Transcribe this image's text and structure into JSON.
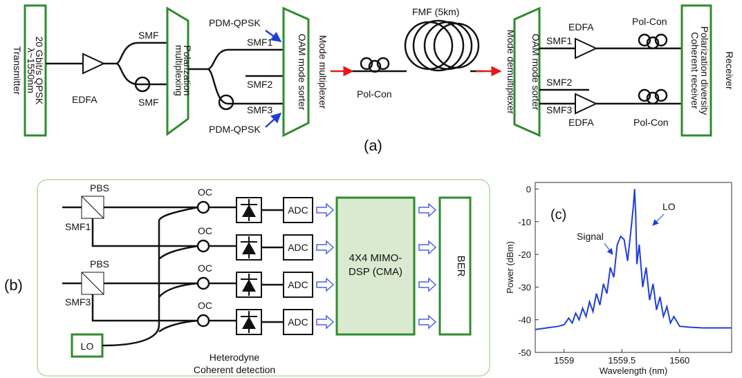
{
  "panel_a": {
    "caption": "(a)",
    "transmitter": {
      "side_label": "Transmitter",
      "line1": "20 Gbit/s QPSK",
      "line2": "λ~1550nm"
    },
    "edfa_tx": "EDFA",
    "smf_top": "SMF",
    "smf_bottom": "SMF",
    "pol_mux": {
      "line1": "Polarization",
      "line2": "multiplexing"
    },
    "pdm_qpsk_top": "PDM-QPSK",
    "pdm_qpsk_bottom": "PDM-QPSK",
    "smf1_tx": "SMF1",
    "smf2_tx": "SMF2",
    "smf3_tx": "SMF3",
    "oam_sorter_tx": "OAM mode sorter",
    "mode_multiplexer": "Mode multiplexer",
    "fmf": "FMF (5km)",
    "pol_con_mid": "Pol-Con",
    "mode_demultiplexer": "Mode demultiplexer",
    "oam_sorter_rx": "OAM mode sorter",
    "smf1_rx": "SMF1",
    "smf2_rx": "SMF2",
    "smf3_rx": "SMF3",
    "edfa_rx_top": "EDFA",
    "edfa_rx_bottom": "EDFA",
    "pol_con_rx_top": "Pol-Con",
    "pol_con_rx_bottom": "Pol-Con",
    "receiver": {
      "side_label": "Receiver",
      "line1": "Polarization diversity",
      "line2": "Coherent receiver"
    }
  },
  "panel_b": {
    "caption": "(b)",
    "pbs_top": "PBS",
    "pbs_bottom": "PBS",
    "smf1": "SMF1",
    "smf3": "SMF3",
    "oc_labels": [
      "OC",
      "OC",
      "OC",
      "OC"
    ],
    "adc_labels": [
      "ADC",
      "ADC",
      "ADC",
      "ADC"
    ],
    "dsp": {
      "line1": "4X4 MIMO-",
      "line2": "DSP (CMA)"
    },
    "ber": "BER",
    "lo": "LO",
    "footer": {
      "line1": "Heterodyne",
      "line2": "Coherent detection"
    }
  },
  "panel_c": {
    "caption": "(c)",
    "annotation_signal": "Signal",
    "annotation_lo": "LO",
    "line_color": "#1f3fd6",
    "chart_data": {
      "type": "line",
      "xlabel": "Wavelength (nm)",
      "ylabel": "Power (dBm)",
      "xlim": [
        1558.75,
        1560.45
      ],
      "ylim": [
        -50,
        2
      ],
      "x_ticks": [
        1559,
        1559.5,
        1560
      ],
      "x_tick_labels": [
        "1559",
        "1559.5",
        "1560"
      ],
      "y_ticks": [
        0,
        -10,
        -20,
        -30,
        -40,
        -50
      ],
      "y_tick_labels": [
        "0",
        "-10",
        "-20",
        "-30",
        "-40",
        "-50"
      ],
      "grid": false,
      "series": [
        {
          "x": [
            1558.75,
            1558.85,
            1558.95,
            1559.0,
            1559.04,
            1559.07,
            1559.1,
            1559.13,
            1559.16,
            1559.19,
            1559.22,
            1559.25,
            1559.28,
            1559.31,
            1559.34,
            1559.37,
            1559.4,
            1559.43,
            1559.46,
            1559.49,
            1559.52,
            1559.55,
            1559.58,
            1559.6,
            1559.61,
            1559.62,
            1559.63,
            1559.65,
            1559.68,
            1559.71,
            1559.74,
            1559.77,
            1559.8,
            1559.83,
            1559.86,
            1559.89,
            1559.92,
            1559.95,
            1560.0,
            1560.1,
            1560.2,
            1560.3,
            1560.45
          ],
          "y": [
            -43,
            -42.5,
            -42,
            -41.5,
            -39.5,
            -41,
            -38,
            -40,
            -36.5,
            -39,
            -34.5,
            -37.5,
            -32,
            -35.5,
            -29,
            -32,
            -24,
            -27,
            -17,
            -14.5,
            -15.5,
            -22,
            -12,
            -5,
            0,
            -8,
            -23,
            -17,
            -30,
            -24,
            -34,
            -29,
            -37,
            -33,
            -39,
            -36,
            -41,
            -39,
            -42,
            -42.3,
            -42.5,
            -42.5,
            -42.5
          ]
        }
      ]
    }
  }
}
